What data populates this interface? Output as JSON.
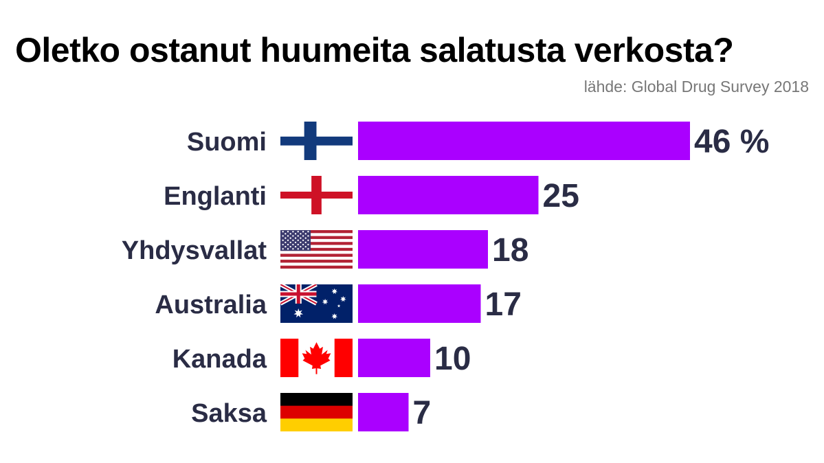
{
  "chart_data": {
    "type": "bar",
    "orientation": "horizontal",
    "title": "Oletko ostanut huumeita salatusta verkosta?",
    "source": "lähde: Global Drug Survey 2018",
    "categories": [
      "Suomi",
      "Englanti",
      "Yhdysvallat",
      "Australia",
      "Kanada",
      "Saksa"
    ],
    "values": [
      46,
      25,
      18,
      17,
      10,
      7
    ],
    "value_labels": [
      "46 %",
      "25",
      "18",
      "17",
      "10",
      "7"
    ],
    "flags": [
      "finland-flag",
      "england-flag",
      "usa-flag",
      "australia-flag",
      "canada-flag",
      "germany-flag"
    ],
    "xlim": [
      0,
      46
    ],
    "grid": false,
    "legend": "none",
    "colors": {
      "bar": "#aa00ff",
      "label": "#2a2c45",
      "title": "#000000",
      "source": "#777777"
    }
  }
}
